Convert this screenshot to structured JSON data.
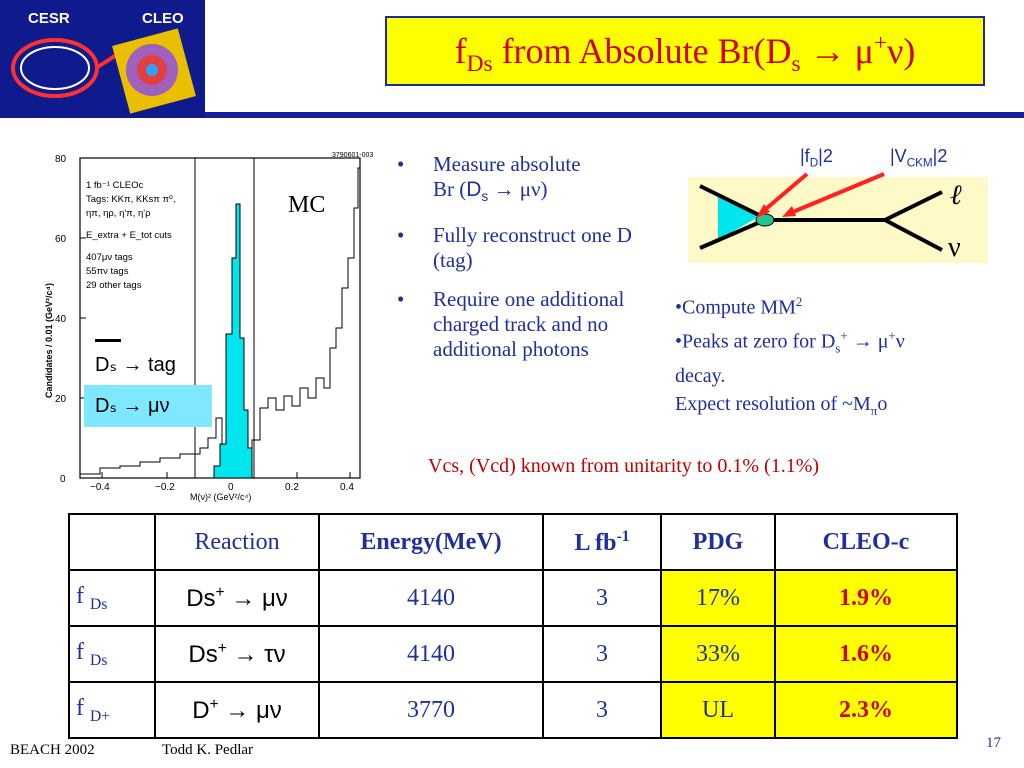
{
  "logo": {
    "cesr": "CESR",
    "cleo": "CLEO"
  },
  "title": {
    "main": "f",
    "sub": "Ds",
    "rest": " from Absolute Br(D",
    "sub2": "s",
    "arrow": " → μ",
    "sup": "+",
    "end": "ν)"
  },
  "plot": {
    "id_text": "3790601-003",
    "legend_lines": [
      "1 fb⁻¹ CLEOc",
      "Tags: KKπ, KKsπ π⁰,",
      "ηπ, ηρ, η'π, η'ρ",
      "E_extra + E_tot cuts",
      "407μν tags",
      "55πν tags",
      "29 other tags"
    ],
    "ylabel": "Candidates / 0.01 (GeV²/c⁴)",
    "xlabel": "M(ν)² (GeV²/c⁴)",
    "mc_label": "MC",
    "legend_tag": "Dₛ → tag",
    "legend_munu": "Dₛ → μν",
    "xticks": [
      "−0.4",
      "−0.2",
      "0",
      "0.2",
      "0.4"
    ],
    "yticks": [
      "0",
      "20",
      "40",
      "60",
      "80"
    ]
  },
  "bullets": {
    "b1_line1": "Measure absolute",
    "b1_line2a": "Br (",
    "b1_ds": "D",
    "b1_s": "s",
    "b1_rest": " → μν)",
    "b2": "Fully reconstruct one D (tag)",
    "b3": "Require one additional charged track and no additional photons"
  },
  "diagram": {
    "fd": "|f",
    "fd_sub": "D",
    "fd_sup": "|2",
    "vckm": "|V",
    "vckm_sub": "CKM",
    "vckm_sup": "|2",
    "ell": "ℓ",
    "nu": "ν"
  },
  "notes": {
    "n1": "•Compute MM",
    "n1_sup": "2",
    "n2a": "•Peaks at zero for D",
    "n2_sub": "s",
    "n2_sup": "+",
    "n2b": " → μ",
    "n2_sup2": "+",
    "n2c": "ν",
    "n3": "decay.",
    "n4a": "Expect resolution of ~M",
    "n4_sub": "π",
    "n4b": "o"
  },
  "vcs_note": "Vcs, (Vcd) known from unitarity to 0.1% (1.1%)",
  "table": {
    "headers": {
      "reaction": "Reaction",
      "energy": "Energy(MeV)",
      "lumi": "L fb",
      "lumi_sup": "-1",
      "pdg": "PDG",
      "cleoc": "CLEO-c"
    },
    "rows": [
      {
        "f": "f ",
        "fsub": "Ds",
        "reaction": "Ds",
        "rsup": "+",
        "rproc": " → μν",
        "energy": "4140",
        "lumi": "3",
        "pdg": "17%",
        "cleoc": "1.9%"
      },
      {
        "f": "f ",
        "fsub": "Ds",
        "reaction": "Ds",
        "rsup": "+",
        "rproc": " → τν",
        "energy": "4140",
        "lumi": "3",
        "pdg": "33%",
        "cleoc": "1.6%"
      },
      {
        "f": "f ",
        "fsub": "D+",
        "reaction": "D",
        "rsup": "+",
        "rproc": " → μν",
        "energy": "3770",
        "lumi": "3",
        "pdg": "UL",
        "cleoc": "2.3%"
      }
    ]
  },
  "footer": {
    "conf": "BEACH 2002",
    "author": "Todd K. Pedlar",
    "page": "17"
  },
  "colors": {
    "navy": "#0f1a8c",
    "title_red": "#d00000",
    "text_blue": "#1f2fa0",
    "highlight": "#ffff00",
    "cyan": "#00e5ee"
  }
}
